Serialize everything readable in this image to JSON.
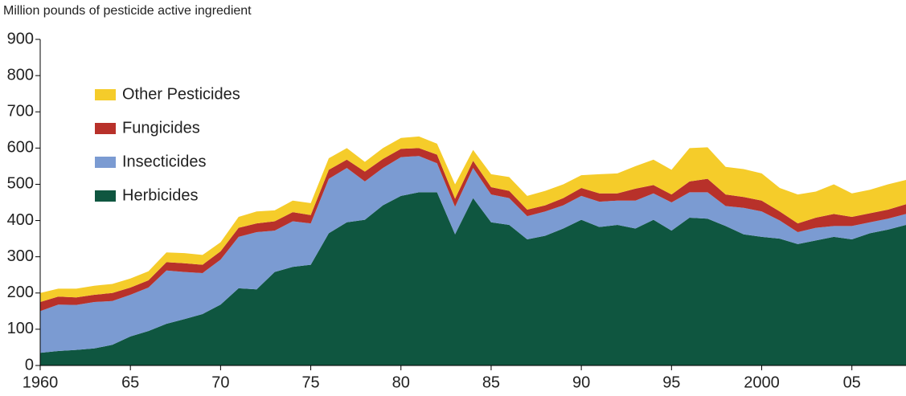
{
  "chart_data": {
    "type": "stacked_area",
    "y_axis_label": "Million pounds of pesticide active ingredient",
    "x": [
      1960,
      1961,
      1962,
      1963,
      1964,
      1965,
      1966,
      1967,
      1968,
      1969,
      1970,
      1971,
      1972,
      1973,
      1974,
      1975,
      1976,
      1977,
      1978,
      1979,
      1980,
      1981,
      1982,
      1983,
      1984,
      1985,
      1986,
      1987,
      1988,
      1989,
      1990,
      1991,
      1992,
      1993,
      1994,
      1995,
      1996,
      1997,
      1998,
      1999,
      2000,
      2001,
      2002,
      2003,
      2004,
      2005,
      2006,
      2007,
      2008
    ],
    "series": [
      {
        "name": "Herbicides",
        "color": "#0f5640",
        "values": [
          35,
          40,
          43,
          47,
          57,
          80,
          95,
          115,
          128,
          142,
          168,
          213,
          210,
          258,
          272,
          278,
          365,
          395,
          402,
          442,
          468,
          478,
          478,
          362,
          462,
          395,
          388,
          348,
          358,
          378,
          402,
          382,
          388,
          378,
          402,
          372,
          408,
          405,
          385,
          362,
          355,
          350,
          335,
          345,
          355,
          348,
          365,
          375,
          388
        ]
      },
      {
        "name": "Insecticides",
        "color": "#7b9bd2",
        "values": [
          115,
          128,
          124,
          128,
          121,
          115,
          120,
          147,
          130,
          113,
          124,
          142,
          158,
          114,
          126,
          114,
          150,
          150,
          106,
          103,
          107,
          100,
          80,
          76,
          83,
          77,
          74,
          64,
          67,
          64,
          66,
          70,
          67,
          77,
          73,
          78,
          70,
          73,
          55,
          73,
          70,
          50,
          33,
          35,
          30,
          37,
          30,
          30,
          30
        ]
      },
      {
        "name": "Fungicides",
        "color": "#b8312a",
        "values": [
          25,
          22,
          21,
          20,
          22,
          20,
          20,
          23,
          24,
          23,
          23,
          25,
          24,
          26,
          25,
          23,
          25,
          23,
          27,
          25,
          23,
          22,
          24,
          22,
          20,
          20,
          20,
          18,
          17,
          20,
          22,
          23,
          20,
          33,
          23,
          22,
          30,
          37,
          32,
          30,
          30,
          25,
          24,
          28,
          33,
          25,
          25,
          25,
          27
        ]
      },
      {
        "name": "Other Pesticides",
        "color": "#f5cc2a",
        "values": [
          25,
          22,
          24,
          25,
          25,
          25,
          25,
          27,
          28,
          27,
          25,
          30,
          33,
          30,
          32,
          33,
          32,
          32,
          27,
          30,
          30,
          32,
          30,
          40,
          30,
          36,
          38,
          38,
          40,
          38,
          35,
          53,
          55,
          62,
          70,
          68,
          92,
          87,
          76,
          77,
          75,
          65,
          80,
          72,
          82,
          65,
          65,
          70,
          67
        ]
      }
    ],
    "xlim": [
      1960,
      2008
    ],
    "xticks": [
      {
        "value": 1960,
        "label": "1960"
      },
      {
        "value": 1965,
        "label": "65"
      },
      {
        "value": 1970,
        "label": "70"
      },
      {
        "value": 1975,
        "label": "75"
      },
      {
        "value": 1980,
        "label": "80"
      },
      {
        "value": 1985,
        "label": "85"
      },
      {
        "value": 1990,
        "label": "90"
      },
      {
        "value": 1995,
        "label": "95"
      },
      {
        "value": 2000,
        "label": "2000"
      },
      {
        "value": 2005,
        "label": "05"
      }
    ],
    "ylim": [
      0,
      900
    ],
    "yticks": [
      0,
      100,
      200,
      300,
      400,
      500,
      600,
      700,
      800,
      900
    ],
    "grid": false,
    "legend": "upper left"
  }
}
